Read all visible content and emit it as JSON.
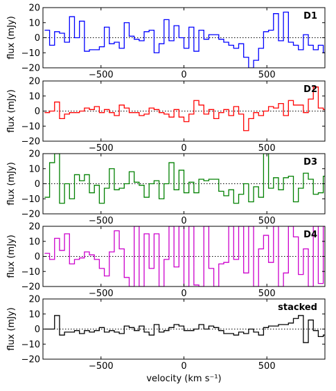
{
  "chart_data": [
    {
      "type": "line",
      "step": true,
      "name": "D1",
      "color": "#0000ff",
      "ylabel": "flux (mJy)",
      "xlim": [
        -850,
        850
      ],
      "ylim": [
        -20,
        20
      ],
      "yticks": [
        -20,
        -10,
        0,
        10,
        20
      ],
      "xticks": [
        -500,
        0,
        500
      ],
      "x_start": -840,
      "bin_width": 30,
      "zero_line": true,
      "values": [
        5,
        -5,
        4,
        3,
        -3,
        14,
        0,
        11,
        -9,
        -8,
        -8,
        -6,
        7,
        -4,
        -3,
        -7,
        10,
        1,
        -1,
        -2,
        4,
        5,
        -10,
        -4,
        12,
        -2,
        8,
        0,
        -7,
        7,
        -9,
        5,
        -1,
        2,
        2,
        -1,
        -3,
        -5,
        -7,
        -4,
        -13,
        -20,
        -15,
        -7,
        4,
        5,
        16,
        -2,
        17,
        -3,
        -5,
        -8,
        2,
        -5,
        -8,
        -5,
        -10,
        -4,
        -2
      ]
    },
    {
      "type": "line",
      "step": true,
      "name": "D2",
      "color": "#ff0000",
      "ylabel": "flux (mJy)",
      "xlim": [
        -850,
        850
      ],
      "ylim": [
        -20,
        20
      ],
      "yticks": [
        -20,
        -10,
        0,
        10,
        20
      ],
      "xticks": [
        -500,
        0,
        500
      ],
      "x_start": -840,
      "bin_width": 30,
      "zero_line": true,
      "values": [
        -1,
        0,
        6,
        -5,
        -2,
        -1,
        -1,
        0,
        2,
        1,
        3,
        -1,
        1,
        -1,
        -3,
        4,
        2,
        -1,
        -1,
        -3,
        -2,
        2,
        1,
        -1,
        -2,
        -4,
        1,
        -4,
        -7,
        -2,
        7,
        4,
        -2,
        1,
        -5,
        -1,
        1,
        -3,
        3,
        -2,
        -13,
        -5,
        -1,
        -3,
        0,
        3,
        2,
        5,
        -3,
        7,
        4,
        4,
        -1,
        8,
        16,
        2,
        1,
        3,
        -3,
        -3,
        7,
        -1,
        4,
        -13
      ]
    },
    {
      "type": "line",
      "step": true,
      "name": "D3",
      "color": "#008000",
      "ylabel": "flux (mJy)",
      "xlim": [
        -850,
        850
      ],
      "ylim": [
        -20,
        20
      ],
      "yticks": [
        -20,
        -10,
        0,
        10,
        20
      ],
      "xticks": [
        -500,
        0,
        500
      ],
      "x_start": -840,
      "bin_width": 30,
      "zero_line": true,
      "values": [
        -9,
        14,
        20,
        -13,
        0,
        -10,
        6,
        2,
        6,
        -6,
        -1,
        -13,
        -3,
        10,
        -4,
        -3,
        0,
        8,
        1,
        -1,
        -9,
        0,
        2,
        -10,
        0,
        14,
        -4,
        9,
        -6,
        1,
        -6,
        3,
        2,
        3,
        3,
        -5,
        -8,
        -4,
        -13,
        -7,
        0,
        -12,
        -2,
        -9,
        20,
        -3,
        4,
        -4,
        4,
        5,
        -12,
        -3,
        7,
        3,
        -7,
        -6,
        5,
        1,
        5,
        -1,
        0,
        2,
        -11,
        -6
      ]
    },
    {
      "type": "line",
      "step": true,
      "name": "D4",
      "color": "#cc00cc",
      "ylabel": "flux (mJy)",
      "xlim": [
        -850,
        850
      ],
      "ylim": [
        -20,
        20
      ],
      "yticks": [
        -20,
        -10,
        0,
        10,
        20
      ],
      "xticks": [
        -500,
        0,
        500
      ],
      "x_start": -840,
      "bin_width": 30,
      "zero_line": true,
      "values": [
        2,
        -2,
        12,
        4,
        15,
        -5,
        -2,
        -1,
        3,
        1,
        -2,
        -8,
        -13,
        3,
        17,
        5,
        -14,
        -20,
        20,
        -20,
        15,
        -8,
        15,
        -20,
        -2,
        20,
        -7,
        20,
        -20,
        20,
        -19,
        -21,
        20,
        -8,
        -20,
        -5,
        -4,
        20,
        -2,
        20,
        -11,
        20,
        -21,
        5,
        14,
        -4,
        20,
        -20,
        -11,
        20,
        13,
        -12,
        5,
        -20,
        20,
        -18,
        20,
        11,
        -10,
        6,
        -18,
        19,
        9,
        -10,
        -20,
        -11
      ]
    },
    {
      "type": "line",
      "step": true,
      "name": "stacked",
      "color": "#000000",
      "ylabel": "flux (mJy)",
      "xlabel": "velocity (km s⁻¹)",
      "xlim": [
        -850,
        850
      ],
      "ylim": [
        -20,
        20
      ],
      "yticks": [
        -20,
        -10,
        0,
        10,
        20
      ],
      "xticks": [
        -500,
        0,
        500
      ],
      "x_start": -840,
      "bin_width": 30,
      "zero_line": true,
      "values": [
        0,
        0,
        9,
        -4,
        -2,
        -2,
        -1,
        -3,
        -1,
        -2,
        -1,
        1,
        -2,
        -1,
        -2,
        -3,
        2,
        1,
        -1,
        2,
        -2,
        -4,
        3,
        -2,
        -1,
        1,
        3,
        2,
        -1,
        -1,
        0,
        3,
        0,
        2,
        1,
        -1,
        -3,
        -3,
        -4,
        -2,
        -3,
        0,
        -2,
        -4,
        1,
        2,
        2,
        3,
        3,
        4,
        7,
        9,
        -9,
        6,
        -1,
        -5,
        -4,
        -6,
        -6,
        -3,
        -3,
        -7
      ]
    }
  ]
}
